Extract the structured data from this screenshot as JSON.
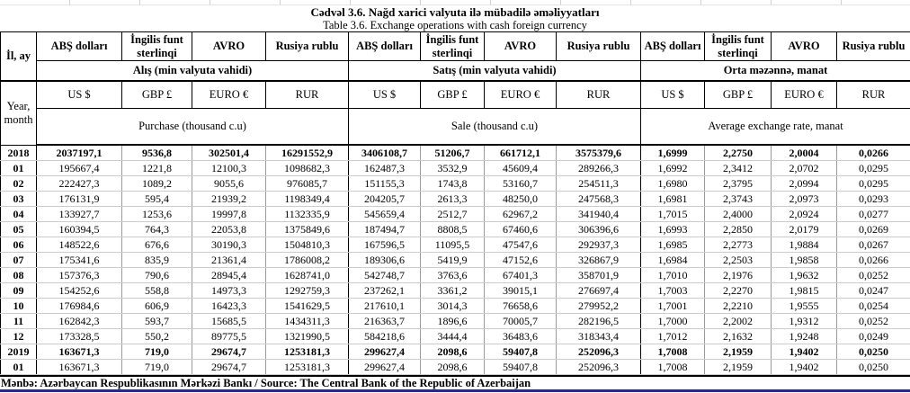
{
  "colors": {
    "source_underline": "#2121c8",
    "grid_light": "#cccccc",
    "grid_dark": "#000000"
  },
  "title": {
    "az": "Cədvəl 3.6. Nağd xarici valyuta ilə mübadilə əməliyyatları",
    "en": "Table  3.6. Exchange operations with cash foreign currency"
  },
  "table": {
    "header": {
      "il_ay": "İl, ay",
      "year_month": "Year, month",
      "currency_names": [
        "ABŞ dolları",
        "İngilis funt sterlinqi",
        "AVRO",
        "Rusiya rublu"
      ],
      "currency_codes": [
        "US $",
        "GBP £",
        "EURO €",
        "RUR"
      ],
      "groups": [
        {
          "az": "Alış (min valyuta vahidi)",
          "en": "Purchase   (thousand c.u)"
        },
        {
          "az": "Satış (min valyuta vahidi)",
          "en": "Sale (thousand c.u)"
        },
        {
          "az": "Orta məzənnə, manat",
          "en": "Average exchange rate, manat"
        }
      ]
    },
    "rows": [
      {
        "label": "2018",
        "bold": true,
        "values": [
          "2037197,1",
          "9536,8",
          "302501,4",
          "16291552,9",
          "3406108,7",
          "51206,7",
          "661712,1",
          "3575379,6",
          "1,6999",
          "2,2750",
          "2,0004",
          "0,0266"
        ]
      },
      {
        "label": "01",
        "bold": false,
        "values": [
          "195667,4",
          "1221,8",
          "12100,3",
          "1098682,3",
          "162487,3",
          "3532,9",
          "45609,4",
          "289266,3",
          "1,6992",
          "2,3412",
          "2,0702",
          "0,0295"
        ]
      },
      {
        "label": "02",
        "bold": false,
        "values": [
          "222427,3",
          "1089,2",
          "9055,6",
          "976085,7",
          "151155,3",
          "1743,8",
          "53160,7",
          "254511,3",
          "1,6980",
          "2,3795",
          "2,0994",
          "0,0295"
        ]
      },
      {
        "label": "03",
        "bold": false,
        "values": [
          "176131,9",
          "595,4",
          "21939,2",
          "1198349,4",
          "204205,7",
          "2613,3",
          "48250,0",
          "247568,3",
          "1,6981",
          "2,3743",
          "2,0973",
          "0,0293"
        ]
      },
      {
        "label": "04",
        "bold": false,
        "values": [
          "133927,7",
          "1253,6",
          "19997,8",
          "1132335,9",
          "545659,4",
          "2512,7",
          "62967,2",
          "341940,4",
          "1,7015",
          "2,4000",
          "2,0924",
          "0,0277"
        ]
      },
      {
        "label": "05",
        "bold": false,
        "values": [
          "160394,5",
          "764,3",
          "22053,8",
          "1375849,6",
          "187494,7",
          "8808,5",
          "67460,6",
          "306396,6",
          "1,6993",
          "2,2850",
          "2,0179",
          "0,0269"
        ]
      },
      {
        "label": "06",
        "bold": false,
        "values": [
          "148522,6",
          "676,6",
          "30190,3",
          "1504810,3",
          "167596,5",
          "11095,5",
          "47547,6",
          "292937,3",
          "1,6985",
          "2,2773",
          "1,9884",
          "0,0267"
        ]
      },
      {
        "label": "07",
        "bold": false,
        "values": [
          "175341,6",
          "835,9",
          "21361,4",
          "1786008,2",
          "189306,6",
          "5419,9",
          "47152,6",
          "326867,9",
          "1,6984",
          "2,2503",
          "1,9858",
          "0,0266"
        ]
      },
      {
        "label": "08",
        "bold": false,
        "values": [
          "157376,3",
          "790,6",
          "28945,4",
          "1628741,0",
          "542748,7",
          "3763,6",
          "67401,3",
          "358701,9",
          "1,7010",
          "2,1976",
          "1,9632",
          "0,0252"
        ]
      },
      {
        "label": "09",
        "bold": false,
        "values": [
          "154252,6",
          "558,8",
          "14973,3",
          "1292759,3",
          "237262,1",
          "3361,2",
          "39015,1",
          "276697,4",
          "1,7003",
          "2,2270",
          "1,9815",
          "0,0247"
        ]
      },
      {
        "label": "10",
        "bold": false,
        "values": [
          "176984,6",
          "606,9",
          "16423,3",
          "1541629,5",
          "217610,1",
          "3014,3",
          "76658,6",
          "279952,2",
          "1,7001",
          "2,2210",
          "1,9555",
          "0,0254"
        ]
      },
      {
        "label": "11",
        "bold": false,
        "values": [
          "162842,3",
          "593,7",
          "15685,5",
          "1434311,3",
          "216363,7",
          "1896,6",
          "70005,7",
          "282196,5",
          "1,7000",
          "2,2002",
          "1,9312",
          "0,0252"
        ]
      },
      {
        "label": "12",
        "bold": false,
        "values": [
          "173328,5",
          "550,2",
          "89775,5",
          "1321990,5",
          "584218,6",
          "3444,4",
          "36483,6",
          "318343,4",
          "1,7012",
          "2,1632",
          "1,9248",
          "0,0249"
        ]
      },
      {
        "label": "2019",
        "bold": true,
        "values": [
          "163671,3",
          "719,0",
          "29674,7",
          "1253181,3",
          "299627,4",
          "2098,6",
          "59407,8",
          "252096,3",
          "1,7008",
          "2,1959",
          "1,9402",
          "0,0250"
        ]
      },
      {
        "label": "01",
        "bold": false,
        "values": [
          "163671,3",
          "719,0",
          "29674,7",
          "1253181,3",
          "299627,4",
          "2098,6",
          "59407,8",
          "252096,3",
          "1,7008",
          "2,1959",
          "1,9402",
          "0,0250"
        ]
      }
    ]
  },
  "footer": {
    "source": "Mənbə: Azərbaycan Respublikasının Mərkəzi Bankı / Source: The Central Bank of the Republic of Azerbaijan"
  }
}
